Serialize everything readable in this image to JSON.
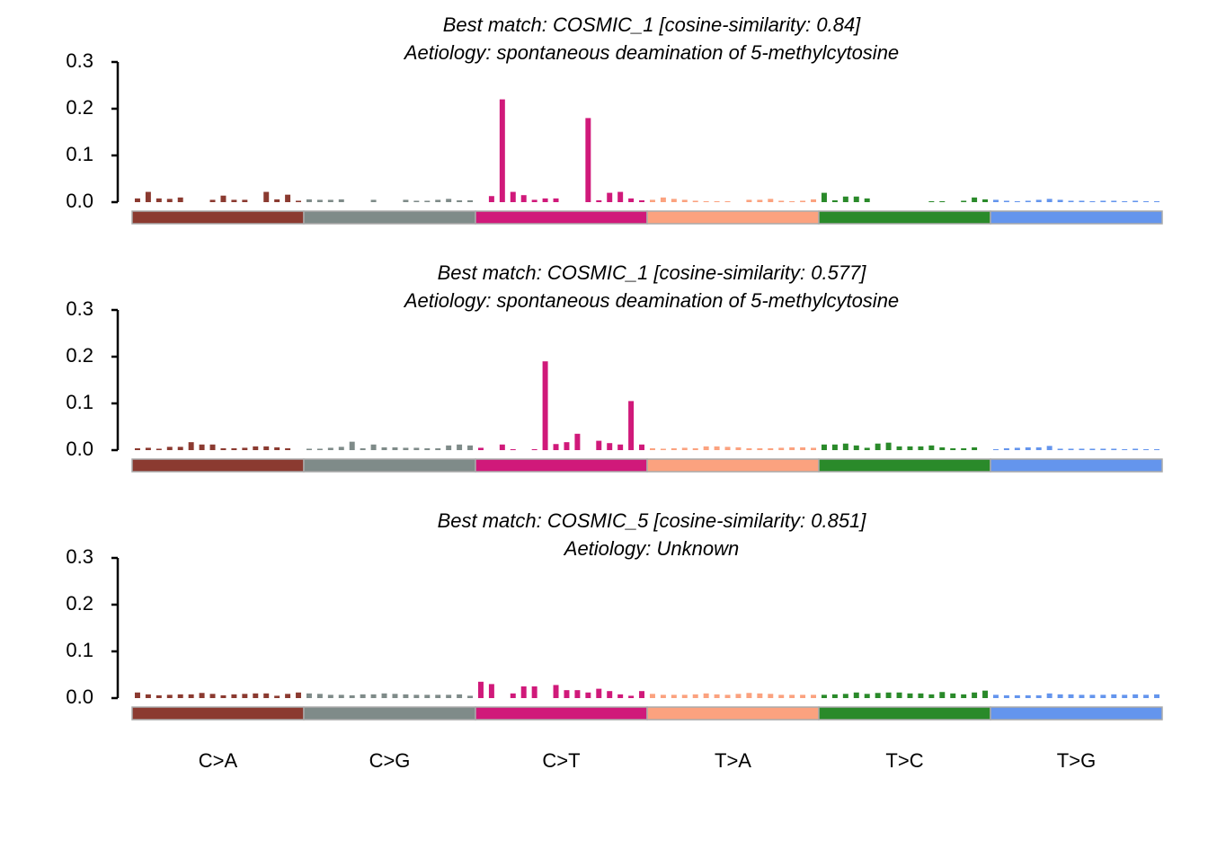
{
  "chart_data": [
    {
      "type": "bar",
      "title": "Best match: COSMIC_1 [cosine-similarity: 0.84]",
      "subtitle": "Aetiology: spontaneous deamination of 5-methylcytosine",
      "group_colors": [
        "#8b3a30",
        "#7f8b89",
        "#d0197a",
        "#fba27f",
        "#2a8a2a",
        "#6495ed"
      ],
      "values": [
        0.008,
        0.022,
        0.008,
        0.007,
        0.01,
        0,
        0,
        0.005,
        0.014,
        0.005,
        0.005,
        0,
        0.022,
        0.006,
        0.016,
        0.003,
        0.006,
        0.005,
        0.005,
        0.006,
        0,
        0,
        0.005,
        0,
        0,
        0.005,
        0.003,
        0.003,
        0.005,
        0.007,
        0.004,
        0.004,
        0,
        0.013,
        0.22,
        0.022,
        0.015,
        0.005,
        0.008,
        0.008,
        0,
        0,
        0.18,
        0.004,
        0.02,
        0.022,
        0.008,
        0.004,
        0.005,
        0.01,
        0.007,
        0.005,
        0.003,
        0.002,
        0.002,
        0.002,
        0,
        0.005,
        0.005,
        0.007,
        0.003,
        0.002,
        0.003,
        0.006,
        0.02,
        0.004,
        0.012,
        0.012,
        0.008,
        0,
        0,
        0,
        0,
        0,
        0.002,
        0.002,
        0,
        0.003,
        0.01,
        0.006,
        0.005,
        0.003,
        0.002,
        0.003,
        0.005,
        0.007,
        0.005,
        0.003,
        0.003,
        0.002,
        0.003,
        0.003,
        0.002,
        0.003,
        0.002,
        0.002
      ],
      "ylim": [
        0,
        0.3
      ],
      "yticks": [
        {
          "value": 0,
          "label": "0.0"
        },
        0.1,
        0.2,
        0.3
      ]
    },
    {
      "type": "bar",
      "title": "Best match: COSMIC_1 [cosine-similarity: 0.577]",
      "subtitle": "Aetiology: spontaneous deamination of 5-methylcytosine",
      "group_colors": [
        "#8b3a30",
        "#7f8b89",
        "#d0197a",
        "#fba27f",
        "#2a8a2a",
        "#6495ed"
      ],
      "values": [
        0.004,
        0.005,
        0.003,
        0.007,
        0.007,
        0.017,
        0.012,
        0.012,
        0.004,
        0.004,
        0.005,
        0.008,
        0.008,
        0.006,
        0.004,
        0,
        0.003,
        0.003,
        0.005,
        0.007,
        0.018,
        0.004,
        0.012,
        0.006,
        0.006,
        0.005,
        0.005,
        0.004,
        0.004,
        0.01,
        0.012,
        0.01,
        0.005,
        0,
        0.012,
        0.002,
        0,
        0.002,
        0.19,
        0.013,
        0.017,
        0.035,
        0,
        0.02,
        0.015,
        0.012,
        0.105,
        0.012,
        0.004,
        0.003,
        0.004,
        0.005,
        0.004,
        0.008,
        0.008,
        0.007,
        0.006,
        0.004,
        0.004,
        0.004,
        0.005,
        0.006,
        0.006,
        0.005,
        0.012,
        0.012,
        0.014,
        0.01,
        0.005,
        0.014,
        0.016,
        0.008,
        0.008,
        0.008,
        0.01,
        0.006,
        0.004,
        0.004,
        0.006,
        0,
        0.002,
        0.004,
        0.005,
        0.006,
        0.006,
        0.009,
        0.003,
        0.003,
        0.003,
        0.003,
        0.003,
        0.003,
        0.002,
        0.003,
        0.002,
        0.002
      ],
      "ylim": [
        0,
        0.3
      ],
      "yticks": [
        {
          "value": 0,
          "label": "0.0"
        },
        0.1,
        0.2,
        0.3
      ]
    },
    {
      "type": "bar",
      "title": "Best match: COSMIC_5 [cosine-similarity: 0.851]",
      "subtitle": "Aetiology: Unknown",
      "group_colors": [
        "#8b3a30",
        "#7f8b89",
        "#d0197a",
        "#fba27f",
        "#2a8a2a",
        "#6495ed"
      ],
      "group_labels": [
        "C>A",
        "C>G",
        "C>T",
        "T>A",
        "T>C",
        "T>G"
      ],
      "values": [
        0.012,
        0.008,
        0.006,
        0.007,
        0.008,
        0.008,
        0.011,
        0.009,
        0.006,
        0.008,
        0.009,
        0.01,
        0.01,
        0.005,
        0.009,
        0.012,
        0.01,
        0.009,
        0.007,
        0.007,
        0.006,
        0.008,
        0.008,
        0.01,
        0.009,
        0.008,
        0.007,
        0.007,
        0.007,
        0.007,
        0.008,
        0.005,
        0.035,
        0.03,
        0,
        0.01,
        0.025,
        0.025,
        0,
        0.028,
        0.017,
        0.017,
        0.012,
        0.02,
        0.015,
        0.008,
        0.005,
        0.015,
        0.009,
        0.007,
        0.007,
        0.007,
        0.008,
        0.01,
        0.008,
        0.007,
        0.009,
        0.011,
        0.01,
        0.009,
        0.007,
        0.007,
        0.007,
        0.007,
        0.007,
        0.008,
        0.009,
        0.012,
        0.009,
        0.011,
        0.012,
        0.012,
        0.01,
        0.01,
        0.008,
        0.013,
        0.01,
        0.008,
        0.012,
        0.016,
        0.007,
        0.006,
        0.006,
        0.006,
        0.006,
        0.01,
        0.008,
        0.008,
        0.007,
        0.007,
        0.007,
        0.008,
        0.007,
        0.008,
        0.007,
        0.008
      ],
      "ylim": [
        0,
        0.3
      ],
      "yticks": [
        {
          "value": 0,
          "label": "0.0"
        },
        0.1,
        0.2,
        0.3
      ]
    }
  ]
}
